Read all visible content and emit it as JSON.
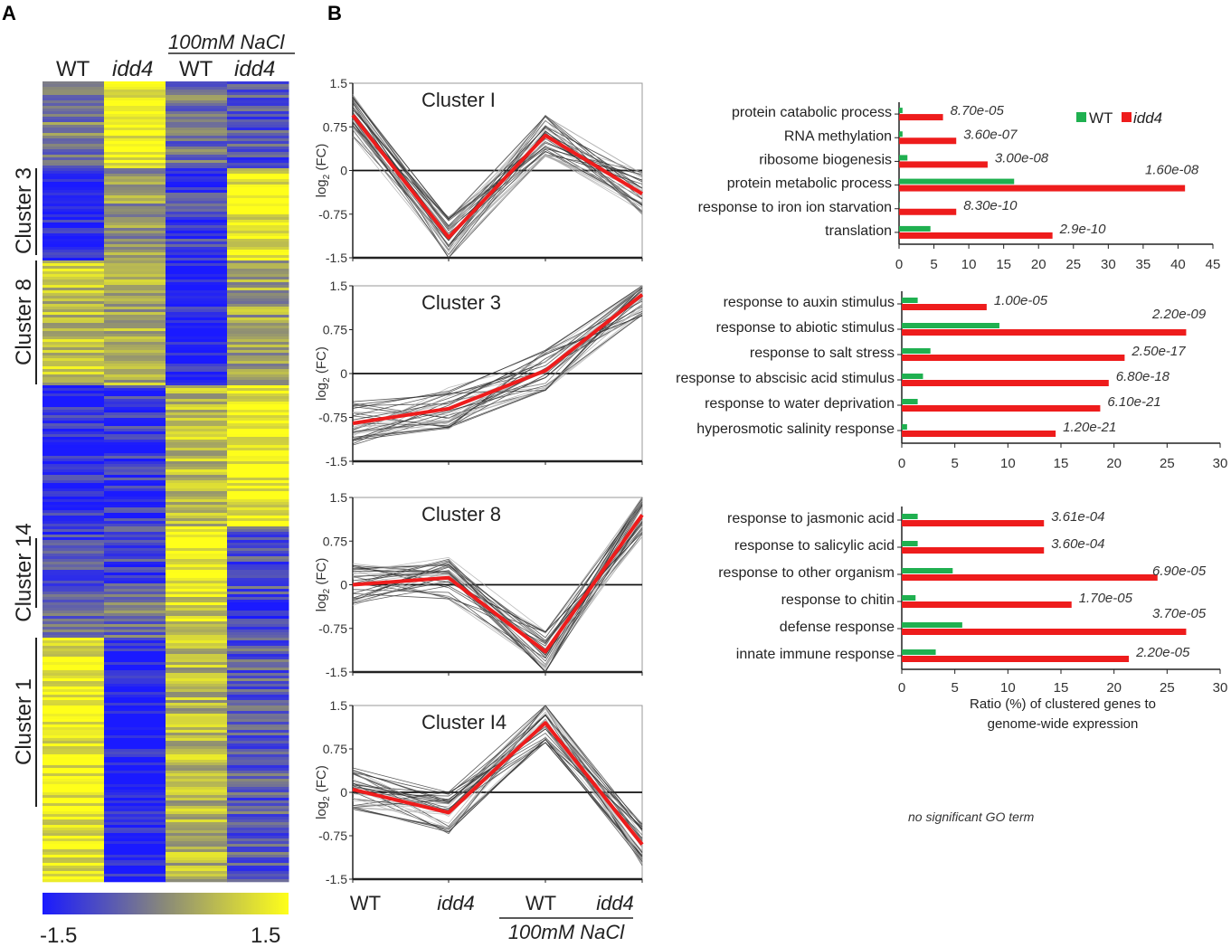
{
  "panels": {
    "a": "A",
    "b": "B"
  },
  "heatmap": {
    "columns": [
      "WT",
      "idd4",
      "WT",
      "idd4"
    ],
    "treatment_label": "100mM NaCl",
    "colorbar": {
      "min_label": "-1.5",
      "max_label": "1.5",
      "low_color": "#1a1aff",
      "mid_color": "#8a8a78",
      "high_color": "#ffff1a"
    },
    "clusters": [
      "Cluster 3",
      "Cluster 8",
      "Cluster 14",
      "Cluster 1"
    ]
  },
  "line_plots": {
    "ylabel_prefix": "log",
    "ylabel_sub": "2",
    "ylabel_suffix": " (FC)",
    "y_ticks": [
      "1.5",
      "0.75",
      "0",
      "-0.75",
      "-1.5"
    ],
    "x_labels": [
      "WT",
      "idd4",
      "WT",
      "idd4"
    ],
    "treatment_label": "100mM NaCl",
    "plots": [
      {
        "title": "Cluster I",
        "mean": [
          0.95,
          -1.15,
          0.6,
          -0.4
        ]
      },
      {
        "title": "Cluster 3",
        "mean": [
          -0.85,
          -0.6,
          0.05,
          1.35
        ]
      },
      {
        "title": "Cluster 8",
        "mean": [
          0.0,
          0.12,
          -1.15,
          1.2
        ]
      },
      {
        "title": "Cluster I4",
        "mean": [
          0.05,
          -0.35,
          1.2,
          -0.9
        ]
      }
    ]
  },
  "chart_data": [
    {
      "type": "bar",
      "title": "Cluster I",
      "categories": [
        "protein catabolic process",
        "RNA methylation",
        "ribosome biogenesis",
        "protein metabolic process",
        "response to iron ion starvation",
        "translation"
      ],
      "series": [
        {
          "name": "WT",
          "values": [
            0.5,
            0.5,
            1.2,
            16.5,
            0.0,
            4.5
          ]
        },
        {
          "name": "idd4",
          "values": [
            6.3,
            8.2,
            12.7,
            41.0,
            8.2,
            22.0
          ]
        }
      ],
      "pvalues": [
        "8.70e-05",
        "3.60e-07",
        "3.00e-08",
        "1.60e-08",
        "8.30e-10",
        "2.9e-10"
      ],
      "xlim": [
        0,
        45
      ],
      "xticks": [
        "0",
        "5",
        "10",
        "15",
        "20",
        "25",
        "30",
        "35",
        "40",
        "45"
      ]
    },
    {
      "type": "bar",
      "title": "Cluster 3",
      "categories": [
        "response to auxin stimulus",
        "response to abiotic stimulus",
        "response to salt stress",
        "response to abscisic acid stimulus",
        "response to water deprivation",
        "hyperosmotic salinity response"
      ],
      "series": [
        {
          "name": "WT",
          "values": [
            1.5,
            9.2,
            2.7,
            2.0,
            1.5,
            0.5
          ]
        },
        {
          "name": "idd4",
          "values": [
            8.0,
            26.8,
            21.0,
            19.5,
            18.7,
            14.5
          ]
        }
      ],
      "pvalues": [
        "1.00e-05",
        "2.20e-09",
        "2.50e-17",
        "6.80e-18",
        "6.10e-21",
        "1.20e-21"
      ],
      "xlim": [
        0,
        30
      ],
      "xticks": [
        "0",
        "5",
        "10",
        "15",
        "20",
        "25",
        "30"
      ]
    },
    {
      "type": "bar",
      "title": "Cluster 8",
      "categories": [
        "response to jasmonic acid",
        "response to salicylic acid",
        "response to other organism",
        "response to chitin",
        "defense response",
        "innate immune response"
      ],
      "series": [
        {
          "name": "WT",
          "values": [
            1.5,
            1.5,
            4.8,
            1.3,
            5.7,
            3.2
          ]
        },
        {
          "name": "idd4",
          "values": [
            13.4,
            13.4,
            24.1,
            16.0,
            26.8,
            21.4
          ]
        }
      ],
      "pvalues": [
        "3.61e-04",
        "3.60e-04",
        "6.90e-05",
        "1.70e-05",
        "3.70e-05",
        "2.20e-05"
      ],
      "xlim": [
        0,
        30
      ],
      "xticks": [
        "0",
        "5",
        "10",
        "15",
        "20",
        "25",
        "30"
      ],
      "xlabel_line1": "Ratio (%) of clustered genes to",
      "xlabel_line2": "genome-wide expression"
    }
  ],
  "legend": {
    "wt": "WT",
    "idd4": "idd4",
    "wt_color": "#1fb050",
    "idd4_color": "#ee1c1c"
  },
  "note": "no significant GO term"
}
